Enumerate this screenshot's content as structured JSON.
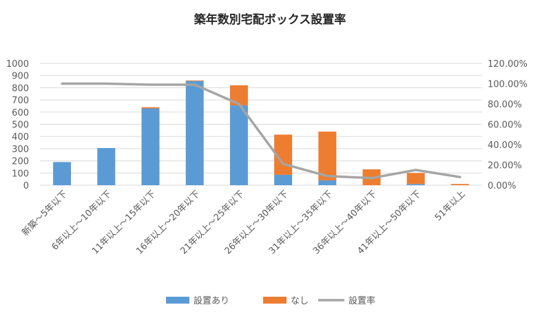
{
  "chart_data": {
    "type": "bar",
    "title": "築年数別宅配ボックス設置率",
    "categories": [
      "新築～5年以下",
      "6年以上～10年以下",
      "11年以上～15年以下",
      "16年以上～20年以下",
      "21年以上～25年以下",
      "26年以上～30年以下",
      "31年以上～35年以下",
      "36年以上～40年以下",
      "41年以上～50年以下",
      "51年以上"
    ],
    "series": [
      {
        "name": "設置あり",
        "kind": "bar",
        "axis": "left",
        "color": "#5b9bd5",
        "values": [
          190,
          305,
          630,
          855,
          655,
          85,
          40,
          0,
          10,
          0
        ]
      },
      {
        "name": "なし",
        "kind": "bar",
        "axis": "left",
        "color": "#ed7d31",
        "values": [
          0,
          0,
          10,
          5,
          165,
          330,
          400,
          130,
          90,
          10
        ]
      },
      {
        "name": "設置率",
        "kind": "line",
        "axis": "right",
        "color": "#a5a5a5",
        "values": [
          100,
          100,
          99,
          99,
          80,
          21,
          9,
          7,
          15,
          8
        ]
      }
    ],
    "ylim": [
      0,
      1000
    ],
    "y_ticks": [
      "0",
      "100",
      "200",
      "300",
      "400",
      "500",
      "600",
      "700",
      "800",
      "900",
      "1000"
    ],
    "y2lim": [
      0,
      120
    ],
    "y2_ticks": [
      "0.00%",
      "20.00%",
      "40.00%",
      "60.00%",
      "80.00%",
      "100.00%",
      "120.00%"
    ],
    "stacked": true,
    "grid": true,
    "legend_position": "bottom"
  }
}
